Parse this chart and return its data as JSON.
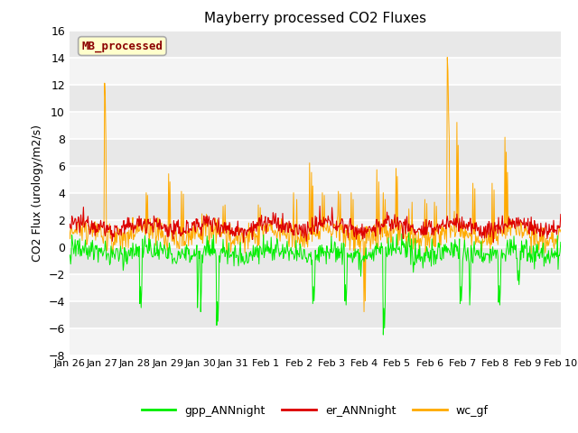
{
  "title": "Mayberry processed CO2 Fluxes",
  "ylabel": "CO2 Flux (urology/m2/s)",
  "ylim": [
    -8,
    16
  ],
  "yticks": [
    -8,
    -6,
    -4,
    -2,
    0,
    2,
    4,
    6,
    8,
    10,
    12,
    14,
    16
  ],
  "background_color": "#e8e8e8",
  "legend_label": "MB_processed",
  "legend_text_color": "#8b0000",
  "legend_box_color": "#ffffcc",
  "legend_box_edge": "#aaaaaa",
  "line_colors": {
    "gpp": "#00ee00",
    "er": "#dd0000",
    "wc": "#ffaa00"
  },
  "legend_entries": [
    "gpp_ANNnight",
    "er_ANNnight",
    "wc_gf"
  ],
  "x_tick_labels": [
    "Jan 26",
    "Jan 27",
    "Jan 28",
    "Jan 29",
    "Jan 30",
    "Jan 31",
    "Feb 1",
    "Feb 2",
    "Feb 3",
    "Feb 4",
    "Feb 5",
    "Feb 6",
    "Feb 7",
    "Feb 8",
    "Feb 9",
    "Feb 10"
  ],
  "n_points": 768,
  "seed": 12345
}
